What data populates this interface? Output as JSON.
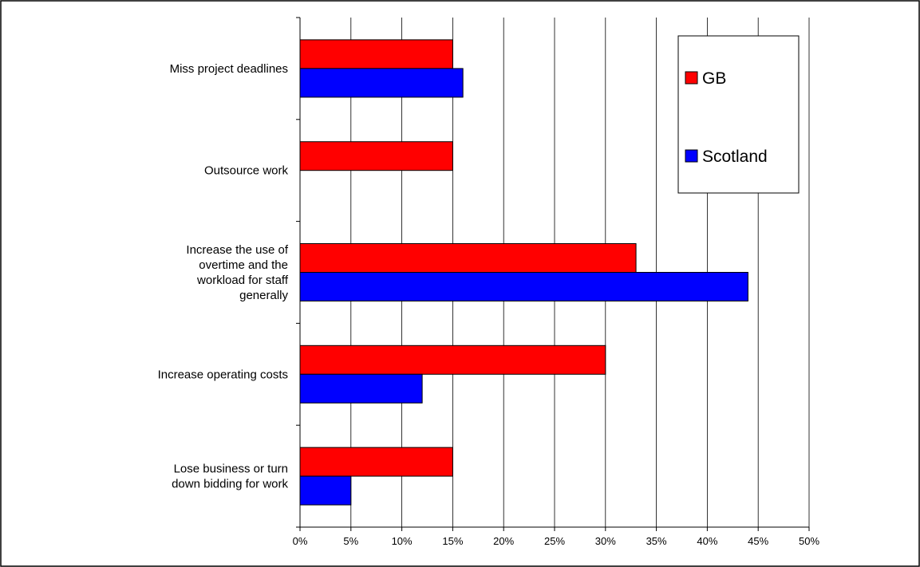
{
  "chart_data": {
    "type": "bar",
    "orientation": "horizontal",
    "categories": [
      [
        "Miss project deadlines"
      ],
      [
        "Outsource work"
      ],
      [
        "Increase the use of",
        "overtime and the",
        "workload for staff",
        "generally"
      ],
      [
        "Increase operating costs"
      ],
      [
        "Lose business or turn",
        "down bidding for work"
      ]
    ],
    "series": [
      {
        "name": "GB",
        "color": "#ff0000",
        "values": [
          15,
          15,
          33,
          30,
          15
        ]
      },
      {
        "name": "Scotland",
        "color": "#0000ff",
        "values": [
          16,
          0,
          44,
          12,
          5
        ]
      }
    ],
    "x_ticks": [
      "0%",
      "5%",
      "10%",
      "15%",
      "20%",
      "25%",
      "30%",
      "35%",
      "40%",
      "45%",
      "50%"
    ],
    "xlim": [
      0,
      50
    ],
    "x_unit": "percent",
    "grid": "vertical",
    "legend_position": "top-right"
  }
}
